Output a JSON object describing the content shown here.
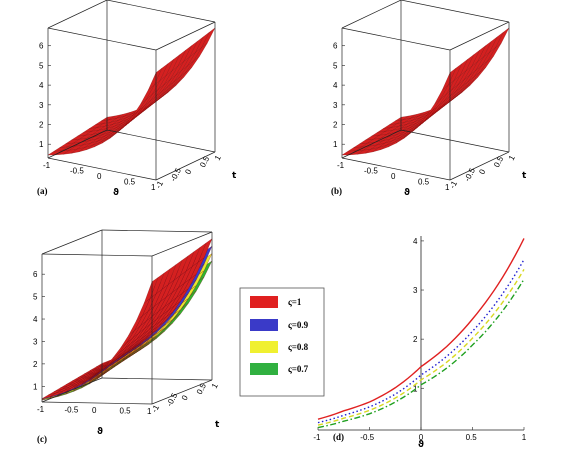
{
  "chart_data": [
    {
      "type": "surface",
      "panel_label": "(a)",
      "xlabel": "ϑ",
      "tlabel": "t",
      "x_ticks": [
        "-1",
        "-0.5",
        "0",
        "0.5",
        "1"
      ],
      "t_ticks": [
        "-1",
        "-0.5",
        "0",
        "0.5",
        "1"
      ],
      "z_ticks": [
        "1",
        "2",
        "3",
        "4",
        "5",
        "6"
      ],
      "xlim": [
        -1,
        1
      ],
      "tlim": [
        -1,
        1
      ],
      "zlim": [
        0.3,
        6.9
      ],
      "surface_color": "#d42020",
      "corner_values": {
        "x_min_t_min": 0.45,
        "x_min_t_max": 0.95,
        "x_max_t_min": 5.75,
        "x_max_t_max": 6.6
      }
    },
    {
      "type": "surface",
      "panel_label": "(b)",
      "xlabel": "ϑ",
      "tlabel": "t",
      "x_ticks": [
        "-1",
        "-0.5",
        "0",
        "0.5",
        "1"
      ],
      "t_ticks": [
        "-1",
        "-0.5",
        "0",
        "0.5",
        "1"
      ],
      "z_ticks": [
        "1",
        "2",
        "3",
        "4",
        "5",
        "6"
      ],
      "xlim": [
        -1,
        1
      ],
      "tlim": [
        -1,
        1
      ],
      "zlim": [
        0.3,
        6.9
      ],
      "surface_color": "#d42020",
      "corner_values": {
        "x_min_t_min": 0.45,
        "x_min_t_max": 0.95,
        "x_max_t_min": 5.75,
        "x_max_t_max": 6.6
      }
    },
    {
      "type": "surface",
      "panel_label": "(c)",
      "xlabel": "ϑ",
      "tlabel": "t",
      "x_ticks": [
        "-1",
        "-0.5",
        "0",
        "0.5",
        "1"
      ],
      "t_ticks": [
        "-1",
        "-0.5",
        "0",
        "0.5",
        "1"
      ],
      "z_ticks": [
        "1",
        "2",
        "3",
        "4",
        "5",
        "6"
      ],
      "xlim": [
        -1,
        1
      ],
      "tlim": [
        -1,
        1
      ],
      "zlim": [
        0.3,
        6.9
      ],
      "surface_color": "#d42020",
      "layer_colors": [
        "#3a3ac8",
        "#e8e830",
        "#30b030"
      ],
      "corner_values": {
        "x_min_t_min": 0.45,
        "x_min_t_max": 0.95,
        "x_max_t_min": 5.75,
        "x_max_t_max": 6.6
      }
    },
    {
      "type": "line",
      "panel_label": "(d)",
      "xlabel": "ϑ",
      "x_ticks": [
        "-1",
        "-0.5",
        "0",
        "0.5",
        "1"
      ],
      "y_ticks": [
        "1",
        "2",
        "3",
        "4"
      ],
      "xlim": [
        -1,
        1
      ],
      "ylim": [
        0.15,
        4.1
      ],
      "series": [
        {
          "name": "ς=1",
          "color": "#e02020",
          "style": "solid",
          "x": [
            -1,
            -0.75,
            -0.5,
            -0.25,
            0,
            0.25,
            0.5,
            0.75,
            1
          ],
          "y": [
            0.37,
            0.54,
            0.72,
            1.01,
            1.44,
            1.85,
            2.41,
            3.12,
            4.05
          ]
        },
        {
          "name": "ς=0.9",
          "color": "#2020d0",
          "style": "dotted",
          "x": [
            -1,
            -0.75,
            -0.5,
            -0.25,
            0,
            0.25,
            0.5,
            0.75,
            1
          ],
          "y": [
            0.3,
            0.45,
            0.62,
            0.88,
            1.27,
            1.65,
            2.16,
            2.8,
            3.62
          ]
        },
        {
          "name": "ς=0.8",
          "color": "#d8d820",
          "style": "dash",
          "x": [
            -1,
            -0.75,
            -0.5,
            -0.25,
            0,
            0.25,
            0.5,
            0.75,
            1
          ],
          "y": [
            0.25,
            0.39,
            0.55,
            0.8,
            1.17,
            1.53,
            2.02,
            2.63,
            3.42
          ]
        },
        {
          "name": "ς=0.7",
          "color": "#20a020",
          "style": "dashdot",
          "x": [
            -1,
            -0.75,
            -0.5,
            -0.25,
            0,
            0.25,
            0.5,
            0.75,
            1
          ],
          "y": [
            0.2,
            0.33,
            0.48,
            0.72,
            1.07,
            1.41,
            1.88,
            2.46,
            3.22
          ]
        }
      ]
    }
  ]
}
